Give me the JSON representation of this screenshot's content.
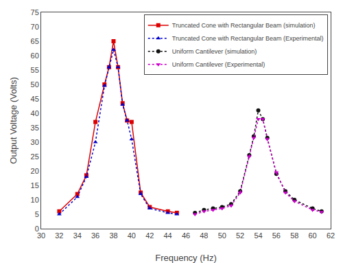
{
  "chart_data": {
    "type": "line",
    "xlabel": "Frequency (Hz)",
    "ylabel": "Output Voltage (Volts)",
    "xlim": [
      30,
      62
    ],
    "ylim": [
      0,
      75
    ],
    "xticks": [
      30,
      32,
      34,
      36,
      38,
      40,
      42,
      44,
      46,
      48,
      50,
      52,
      54,
      56,
      58,
      60,
      62
    ],
    "yticks": [
      0,
      5,
      10,
      15,
      20,
      25,
      30,
      35,
      40,
      45,
      50,
      55,
      60,
      65,
      70,
      75
    ],
    "grid": false,
    "legend": "upper right",
    "series": [
      {
        "name": "Truncated Cone with Rectangular Beam (simulation)",
        "color": "#DD0000",
        "line_style": "solid",
        "marker": "square",
        "x": [
          32,
          34,
          35,
          36,
          37,
          37.5,
          38,
          38.5,
          39,
          39.5,
          40,
          41,
          42,
          44,
          45
        ],
        "values": [
          6.0,
          12.0,
          18.5,
          37.0,
          50.0,
          56.0,
          65.0,
          56.0,
          43.5,
          37.5,
          37.0,
          12.5,
          7.5,
          6.0,
          5.5
        ]
      },
      {
        "name": "Truncated Cone with Rectangular Beam (Experimental)",
        "color": "#0000CC",
        "line_style": "dotted",
        "marker": "triangle-up",
        "x": [
          32,
          34,
          35,
          36,
          37,
          37.5,
          38,
          38.5,
          39,
          39.5,
          40,
          41,
          42,
          44,
          45
        ],
        "values": [
          5.0,
          11.0,
          18.0,
          30.0,
          49.5,
          56.0,
          62.0,
          56.0,
          43.0,
          37.5,
          31.0,
          12.0,
          7.0,
          5.5,
          5.0
        ]
      },
      {
        "name": "Uniform Cantilever (simulation)",
        "color": "#111111",
        "line_style": "dotted",
        "marker": "circle",
        "x": [
          47,
          48,
          49,
          50,
          51,
          52,
          53,
          53.5,
          54,
          54.5,
          55,
          56,
          57,
          58,
          60,
          61
        ],
        "values": [
          5.5,
          6.5,
          7.0,
          7.5,
          8.5,
          13.0,
          25.5,
          32.0,
          41.0,
          38.0,
          31.5,
          19.0,
          13.0,
          10.0,
          7.0,
          6.0
        ]
      },
      {
        "name": "Uniform Cantilever (Experimental)",
        "color": "#CC00CC",
        "line_style": "dotted",
        "marker": "triangle-down",
        "x": [
          47,
          48,
          49,
          50,
          51,
          52,
          53,
          53.5,
          54,
          54.5,
          55,
          56,
          57,
          58,
          60,
          61
        ],
        "values": [
          5.0,
          6.0,
          6.5,
          7.0,
          8.0,
          12.5,
          25.0,
          31.5,
          38.0,
          38.0,
          31.0,
          19.5,
          12.5,
          9.5,
          6.5,
          5.8
        ]
      }
    ]
  }
}
